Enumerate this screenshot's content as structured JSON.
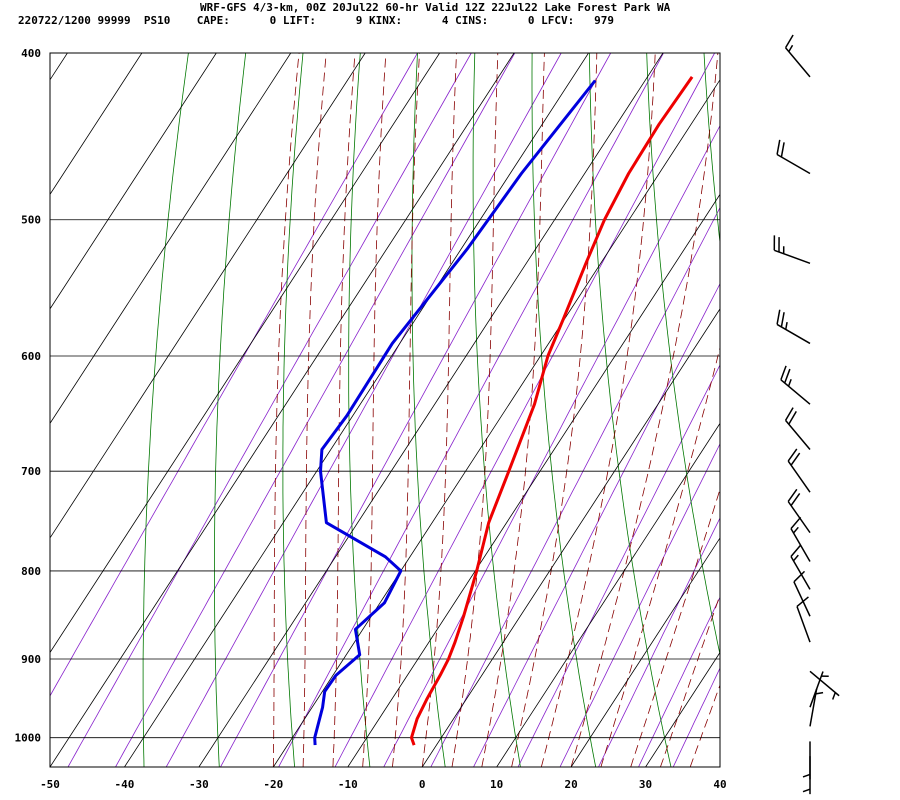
{
  "header": {
    "line1": "WRF-GFS 4/3-km, 00Z 20Jul22 60-hr Valid 12Z 22Jul22 Lake Forest Park WA",
    "line2": "220722/1200 99999  PS10    CAPE:      0 LIFT:      9 KINX:      4 CINS:      0 LFCV:   979"
  },
  "colors": {
    "temperature": "#ee0000",
    "dewpoint": "#0000dd",
    "isotherm": "#000000",
    "isobar": "#000000",
    "dry_adiabat": "#007700",
    "moist_adiabat": "#880000",
    "mixing_ratio": "#8822cc",
    "wind_barb": "#000000"
  },
  "chart_data": {
    "type": "line",
    "title": "WRF-GFS 4/3-km, 00Z 20Jul22 60-hr Valid 12Z 22Jul22 Lake Forest Park WA",
    "xlabel": "",
    "ylabel": "",
    "x_axis": "temperature (C), skewed",
    "y_axis": "pressure (hPa), log scale, inverted",
    "xlim": [
      -50,
      40
    ],
    "ylim": [
      1040,
      400
    ],
    "x_ticks": [
      -50,
      -40,
      -30,
      -20,
      -10,
      0,
      10,
      20,
      30,
      40
    ],
    "y_ticks": [
      400,
      500,
      600,
      700,
      800,
      900,
      1000
    ],
    "grid": true,
    "series": [
      {
        "name": "Temperature",
        "color": "#ee0000",
        "points": [
          [
            413,
            -24.0
          ],
          [
            440,
            -24.3
          ],
          [
            470,
            -24.1
          ],
          [
            500,
            -23.3
          ],
          [
            530,
            -22.0
          ],
          [
            570,
            -20.2
          ],
          [
            600,
            -19.0
          ],
          [
            640,
            -16.6
          ],
          [
            700,
            -14.2
          ],
          [
            750,
            -12.4
          ],
          [
            800,
            -9.8
          ],
          [
            850,
            -7.6
          ],
          [
            880,
            -6.5
          ],
          [
            900,
            -5.9
          ],
          [
            920,
            -5.6
          ],
          [
            950,
            -5.3
          ],
          [
            975,
            -4.9
          ],
          [
            1000,
            -4.0
          ],
          [
            1010,
            -3.0
          ]
        ]
      },
      {
        "name": "Dewpoint",
        "color": "#0000dd",
        "points": [
          [
            415,
            -36.7
          ],
          [
            470,
            -38.5
          ],
          [
            520,
            -39.2
          ],
          [
            590,
            -41.0
          ],
          [
            650,
            -40.8
          ],
          [
            680,
            -41.2
          ],
          [
            700,
            -39.5
          ],
          [
            750,
            -34.2
          ],
          [
            785,
            -23.3
          ],
          [
            800,
            -20.0
          ],
          [
            835,
            -19.4
          ],
          [
            865,
            -21.0
          ],
          [
            895,
            -18.2
          ],
          [
            920,
            -19.6
          ],
          [
            940,
            -19.7
          ],
          [
            960,
            -18.6
          ],
          [
            1000,
            -17.0
          ],
          [
            1010,
            -16.3
          ]
        ]
      }
    ],
    "wind_barbs": [
      {
        "pressure": 413,
        "dir": 320,
        "speed": 15
      },
      {
        "pressure": 470,
        "dir": 300,
        "speed": 20
      },
      {
        "pressure": 530,
        "dir": 290,
        "speed": 25
      },
      {
        "pressure": 590,
        "dir": 300,
        "speed": 25
      },
      {
        "pressure": 640,
        "dir": 310,
        "speed": 25
      },
      {
        "pressure": 680,
        "dir": 320,
        "speed": 20
      },
      {
        "pressure": 720,
        "dir": 325,
        "speed": 20
      },
      {
        "pressure": 760,
        "dir": 325,
        "speed": 20
      },
      {
        "pressure": 790,
        "dir": 330,
        "speed": 15
      },
      {
        "pressure": 820,
        "dir": 330,
        "speed": 15
      },
      {
        "pressure": 850,
        "dir": 335,
        "speed": 10
      },
      {
        "pressure": 880,
        "dir": 340,
        "speed": 10
      },
      {
        "pressure": 915,
        "dir": 130,
        "speed": 5
      },
      {
        "pressure": 960,
        "dir": 20,
        "speed": 5
      },
      {
        "pressure": 985,
        "dir": 10,
        "speed": 5
      },
      {
        "pressure": 1005,
        "dir": 180,
        "speed": 5
      },
      {
        "pressure": 1025,
        "dir": 180,
        "speed": 5
      }
    ]
  }
}
